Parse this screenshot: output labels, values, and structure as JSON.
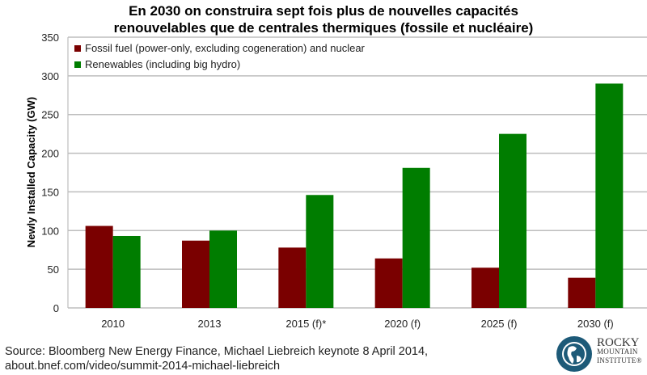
{
  "chart_data": {
    "type": "bar",
    "title": "En 2030 on construira sept fois plus de nouvelles capacités renouvelables que de centrales thermiques (fossile et nucléaire)",
    "title_lines": [
      "En 2030 on construira sept fois plus de nouvelles capacités",
      "renouvelables que de centrales thermiques (fossile et nucléaire)"
    ],
    "xlabel": "",
    "ylabel": "Newly Installed Capacity (GW)",
    "ylim": [
      0,
      350
    ],
    "yticks": [
      0,
      50,
      100,
      150,
      200,
      250,
      300,
      350
    ],
    "grid": true,
    "legend_position": "top-left",
    "categories": [
      "2010",
      "2013",
      "2015 (f)*",
      "2020 (f)",
      "2025 (f)",
      "2030 (f)"
    ],
    "series": [
      {
        "name": "Fossil fuel (power-only, excluding cogeneration) and nuclear",
        "color": "#7a0000",
        "values": [
          106,
          87,
          78,
          64,
          52,
          39
        ]
      },
      {
        "name": "Renewables (including big hydro)",
        "color": "#007d00",
        "values": [
          93,
          100,
          146,
          181,
          225,
          290
        ]
      }
    ]
  },
  "source": {
    "line1": "Source: Bloomberg New Energy Finance, Michael Liebreich keynote 8 April 2014,",
    "line2": "about.bnef.com/video/summit-2014-michael-liebreich"
  },
  "logo": {
    "line1": "ROCKY",
    "line2": "MOUNTAIN",
    "line3": "INSTITUTE®",
    "icon": "globe-icon"
  }
}
